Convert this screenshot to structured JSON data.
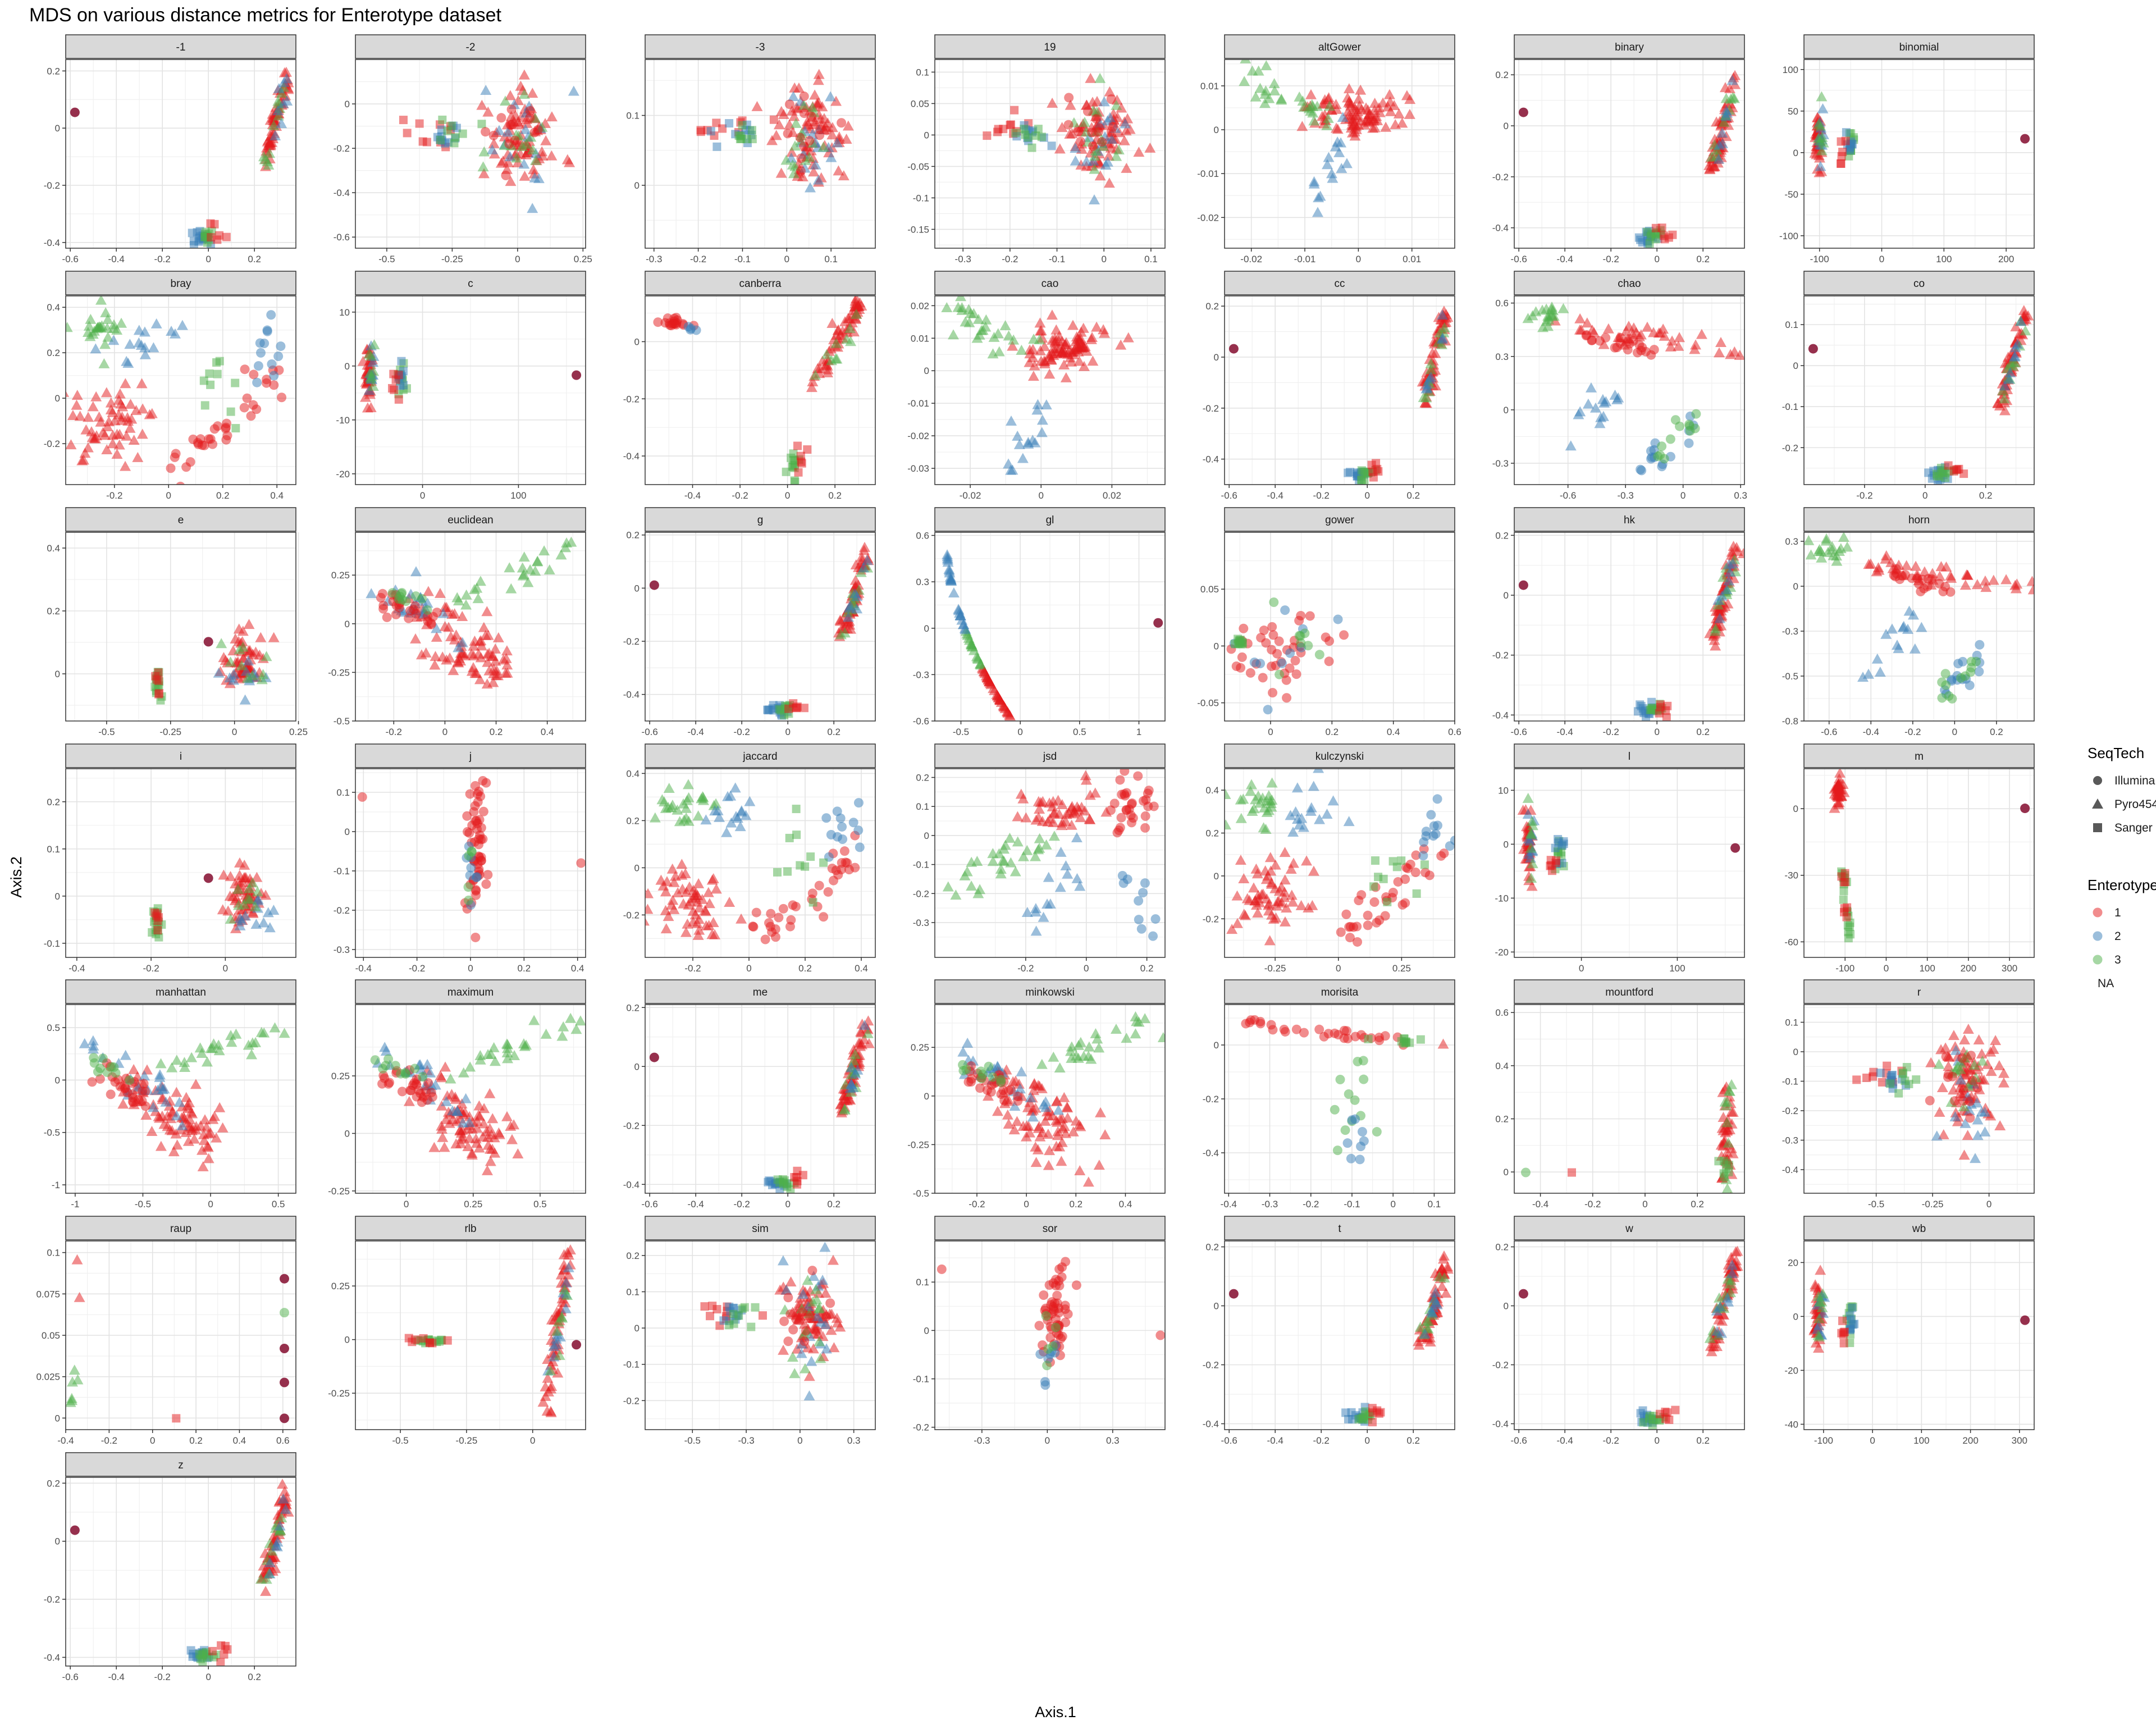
{
  "chart_data": {
    "type": "scatter",
    "title": "MDS on various distance metrics for Enterotype dataset",
    "xlabel": "Axis.1",
    "ylabel": "Axis.2",
    "colors": {
      "1": "#E41A1C",
      "2": "#377EB8",
      "3": "#4DAF4A",
      "NA": "#8B1A3A"
    },
    "legend": {
      "seqtech": {
        "title": "SeqTech",
        "items": [
          "Illumina",
          "Pyro454",
          "Sanger"
        ]
      },
      "enterotype": {
        "title": "Enterotype",
        "items": [
          "1",
          "2",
          "3",
          "NA"
        ]
      }
    },
    "facets": [
      {
        "label": "-1",
        "gen": "A",
        "xlim": [
          -0.62,
          0.38
        ],
        "ylim": [
          -0.42,
          0.24
        ],
        "xticks": [
          -0.6,
          -0.4,
          -0.2,
          0.0,
          0.2
        ],
        "yticks": [
          -0.4,
          -0.2,
          0.0,
          0.2
        ],
        "decimals": 1
      },
      {
        "label": "-2",
        "gen": "I",
        "xlim": [
          -0.62,
          0.26
        ],
        "ylim": [
          -0.65,
          0.2
        ],
        "xticks": [
          -0.5,
          -0.25,
          0.0,
          0.25
        ],
        "yticks": [
          -0.6,
          -0.4,
          -0.2,
          0.0
        ],
        "decimals": 2
      },
      {
        "label": "-3",
        "gen": "I",
        "xlim": [
          -0.32,
          0.2
        ],
        "ylim": [
          -0.09,
          0.18
        ],
        "xticks": [
          -0.3,
          -0.2,
          -0.1,
          0.0,
          0.1
        ],
        "yticks": [
          0.0,
          0.1
        ],
        "decimals": 1
      },
      {
        "label": "19",
        "gen": "I",
        "xlim": [
          -0.36,
          0.13
        ],
        "ylim": [
          -0.18,
          0.12
        ],
        "xticks": [
          -0.3,
          -0.2,
          -0.1,
          0.0,
          0.1
        ],
        "yticks": [
          -0.15,
          -0.1,
          -0.05,
          0.0,
          0.05,
          0.1
        ],
        "decimals": 2
      },
      {
        "label": "altGower",
        "gen": "H",
        "xlim": [
          -0.025,
          0.018
        ],
        "ylim": [
          -0.027,
          0.016
        ],
        "xticks": [
          -0.02,
          -0.01,
          0.0,
          0.01
        ],
        "yticks": [
          -0.02,
          -0.01,
          0.0,
          0.01
        ],
        "decimals": 2
      },
      {
        "label": "binary",
        "gen": "A",
        "xlim": [
          -0.62,
          0.38
        ],
        "ylim": [
          -0.48,
          0.26
        ],
        "xticks": [
          -0.6,
          -0.4,
          -0.2,
          0.0,
          0.2
        ],
        "yticks": [
          -0.4,
          -0.2,
          0.0,
          0.2
        ],
        "decimals": 1
      },
      {
        "label": "binomial",
        "gen": "C",
        "xlim": [
          -125,
          245
        ],
        "ylim": [
          -115,
          112
        ],
        "xticks": [
          -100,
          0,
          100,
          200
        ],
        "yticks": [
          -100,
          -50,
          0,
          50,
          100
        ],
        "decimals": 0
      },
      {
        "label": "bray",
        "gen": "J",
        "xlim": [
          -0.38,
          0.47
        ],
        "ylim": [
          -0.38,
          0.45
        ],
        "xticks": [
          -0.2,
          0.0,
          0.2,
          0.4
        ],
        "yticks": [
          -0.2,
          0.0,
          0.2,
          0.4
        ],
        "decimals": 1
      },
      {
        "label": "c",
        "gen": "C",
        "xlim": [
          -70,
          170
        ],
        "ylim": [
          -22,
          13
        ],
        "xticks": [
          0,
          100
        ],
        "yticks": [
          -20,
          -10,
          0,
          10
        ],
        "decimals": 0
      },
      {
        "label": "canberra",
        "gen": "K",
        "xlim": [
          -0.6,
          0.37
        ],
        "ylim": [
          -0.5,
          0.16
        ],
        "xticks": [
          -0.4,
          -0.2,
          0.0,
          0.2
        ],
        "yticks": [
          -0.4,
          -0.2,
          0.0
        ],
        "decimals": 1
      },
      {
        "label": "cao",
        "gen": "H",
        "xlim": [
          -0.03,
          0.035
        ],
        "ylim": [
          -0.035,
          0.023
        ],
        "xticks": [
          -0.02,
          0.0,
          0.02
        ],
        "yticks": [
          -0.03,
          -0.02,
          -0.01,
          0.0,
          0.01,
          0.02
        ],
        "decimals": 2
      },
      {
        "label": "cc",
        "gen": "A",
        "xlim": [
          -0.62,
          0.38
        ],
        "ylim": [
          -0.5,
          0.24
        ],
        "xticks": [
          -0.6,
          -0.4,
          -0.2,
          0.0,
          0.2
        ],
        "yticks": [
          -0.4,
          -0.2,
          0.0,
          0.2
        ],
        "decimals": 1
      },
      {
        "label": "chao",
        "gen": "N",
        "xlim": [
          -0.88,
          0.32
        ],
        "ylim": [
          -0.42,
          0.64
        ],
        "xticks": [
          -0.6,
          -0.3,
          0.0,
          0.3
        ],
        "yticks": [
          -0.3,
          0.0,
          0.3,
          0.6
        ],
        "decimals": 1
      },
      {
        "label": "co",
        "gen": "A",
        "xlim": [
          -0.4,
          0.36
        ],
        "ylim": [
          -0.29,
          0.17
        ],
        "xticks": [
          -0.2,
          0.0,
          0.2
        ],
        "yticks": [
          -0.2,
          -0.1,
          0.0,
          0.1
        ],
        "decimals": 1
      },
      {
        "label": "e",
        "gen": "E",
        "xlim": [
          -0.66,
          0.24
        ],
        "ylim": [
          -0.15,
          0.45
        ],
        "xticks": [
          -0.5,
          -0.25,
          0.0,
          0.25
        ],
        "yticks": [
          0.0,
          0.2,
          0.4
        ],
        "decimals": 2
      },
      {
        "label": "euclidean",
        "gen": "G",
        "xlim": [
          -0.35,
          0.55
        ],
        "ylim": [
          -0.5,
          0.47
        ],
        "xticks": [
          -0.2,
          0.0,
          0.2,
          0.4
        ],
        "yticks": [
          -0.5,
          -0.25,
          0.0,
          0.25
        ],
        "decimals": 2
      },
      {
        "label": "g",
        "gen": "A",
        "xlim": [
          -0.62,
          0.38
        ],
        "ylim": [
          -0.5,
          0.21
        ],
        "xticks": [
          -0.6,
          -0.4,
          -0.2,
          0.0,
          0.2
        ],
        "yticks": [
          -0.4,
          -0.2,
          0.0,
          0.2
        ],
        "decimals": 1
      },
      {
        "label": "gl",
        "gen": "L",
        "xlim": [
          -0.72,
          1.22
        ],
        "ylim": [
          -0.6,
          0.62
        ],
        "xticks": [
          -0.5,
          0.0,
          0.5,
          1.0
        ],
        "yticks": [
          -0.6,
          -0.3,
          0.0,
          0.3,
          0.6
        ],
        "decimals": 1
      },
      {
        "label": "gower",
        "gen": "M",
        "xlim": [
          -0.15,
          0.6
        ],
        "ylim": [
          -0.066,
          0.1
        ],
        "xticks": [
          0.0,
          0.2,
          0.4,
          0.6
        ],
        "yticks": [
          -0.05,
          0.0,
          0.05
        ],
        "decimals": 2
      },
      {
        "label": "hk",
        "gen": "A",
        "xlim": [
          -0.62,
          0.38
        ],
        "ylim": [
          -0.42,
          0.21
        ],
        "xticks": [
          -0.6,
          -0.4,
          -0.2,
          0.0,
          0.2
        ],
        "yticks": [
          -0.4,
          -0.2,
          0.0,
          0.2
        ],
        "decimals": 1
      },
      {
        "label": "horn",
        "gen": "N",
        "xlim": [
          -0.72,
          0.38
        ],
        "ylim": [
          -0.75,
          0.3
        ],
        "xticks": [
          -0.6,
          -0.4,
          -0.2,
          0.0,
          0.2
        ],
        "yticks": [
          -0.75,
          -0.5,
          -0.25,
          0.0,
          0.25
        ],
        "decimals": 1
      },
      {
        "label": "i",
        "gen": "E",
        "xlim": [
          -0.43,
          0.19
        ],
        "ylim": [
          -0.13,
          0.27
        ],
        "xticks": [
          -0.4,
          -0.2,
          0.0
        ],
        "yticks": [
          -0.1,
          0.0,
          0.1,
          0.2
        ],
        "decimals": 1
      },
      {
        "label": "j",
        "gen": "F",
        "xlim": [
          -0.43,
          0.43
        ],
        "ylim": [
          -0.32,
          0.16
        ],
        "xticks": [
          -0.4,
          -0.2,
          0.0,
          0.2,
          0.4
        ],
        "yticks": [
          -0.3,
          -0.2,
          -0.1,
          0.0,
          0.1
        ],
        "decimals": 1
      },
      {
        "label": "jaccard",
        "gen": "J",
        "xlim": [
          -0.37,
          0.45
        ],
        "ylim": [
          -0.38,
          0.42
        ],
        "xticks": [
          -0.2,
          0.0,
          0.2,
          0.4
        ],
        "yticks": [
          -0.2,
          0.0,
          0.2,
          0.4
        ],
        "decimals": 1
      },
      {
        "label": "jsd",
        "gen": "O",
        "xlim": [
          -0.5,
          0.26
        ],
        "ylim": [
          -0.42,
          0.23
        ],
        "xticks": [
          -0.2,
          0.0,
          0.2
        ],
        "yticks": [
          -0.3,
          -0.2,
          -0.1,
          0.0,
          0.1,
          0.2
        ],
        "decimals": 1
      },
      {
        "label": "kulczynski",
        "gen": "J",
        "xlim": [
          -0.45,
          0.46
        ],
        "ylim": [
          -0.38,
          0.5
        ],
        "xticks": [
          -0.25,
          0.0,
          0.25
        ],
        "yticks": [
          -0.2,
          0.0,
          0.2,
          0.4
        ],
        "decimals": 2
      },
      {
        "label": "l",
        "gen": "C",
        "xlim": [
          -70,
          170
        ],
        "ylim": [
          -21,
          14
        ],
        "xticks": [
          0,
          100
        ],
        "yticks": [
          -20,
          -10,
          0,
          10
        ],
        "decimals": 0
      },
      {
        "label": "m",
        "gen": "D",
        "xlim": [
          -200,
          360
        ],
        "ylim": [
          -67,
          18
        ],
        "xticks": [
          -100,
          0,
          100,
          200,
          300
        ],
        "yticks": [
          -60,
          -30,
          0
        ],
        "decimals": 0
      },
      {
        "label": "manhattan",
        "gen": "G",
        "xlim": [
          -1.07,
          0.63
        ],
        "ylim": [
          -1.08,
          0.72
        ],
        "xticks": [
          -1.0,
          -0.5,
          0.0,
          0.5
        ],
        "yticks": [
          -1.0,
          -0.5,
          0.0,
          0.5
        ],
        "decimals": 1
      },
      {
        "label": "maximum",
        "gen": "G",
        "xlim": [
          -0.19,
          0.67
        ],
        "ylim": [
          -0.26,
          0.56
        ],
        "xticks": [
          0.0,
          0.25,
          0.5
        ],
        "yticks": [
          -0.25,
          0.0,
          0.25
        ],
        "decimals": 2
      },
      {
        "label": "me",
        "gen": "A",
        "xlim": [
          -0.62,
          0.38
        ],
        "ylim": [
          -0.43,
          0.21
        ],
        "xticks": [
          -0.6,
          -0.4,
          -0.2,
          0.0,
          0.2
        ],
        "yticks": [
          -0.4,
          -0.2,
          0.0,
          0.2
        ],
        "decimals": 1
      },
      {
        "label": "minkowski",
        "gen": "G",
        "xlim": [
          -0.37,
          0.56
        ],
        "ylim": [
          -0.5,
          0.47
        ],
        "xticks": [
          -0.2,
          0.0,
          0.2,
          0.4
        ],
        "yticks": [
          -0.5,
          -0.25,
          0.0,
          0.25
        ],
        "decimals": 2
      },
      {
        "label": "morisita",
        "gen": "P",
        "xlim": [
          -0.41,
          0.15
        ],
        "ylim": [
          -0.55,
          0.15
        ],
        "xticks": [
          -0.4,
          -0.3,
          -0.2,
          -0.1,
          0.0,
          0.1
        ],
        "yticks": [
          -0.4,
          -0.2,
          0.0
        ],
        "decimals": 1
      },
      {
        "label": "mountford",
        "gen": "Q",
        "xlim": [
          -0.5,
          0.38
        ],
        "ylim": [
          -0.08,
          0.63
        ],
        "xticks": [
          -0.4,
          -0.2,
          0.0,
          0.2
        ],
        "yticks": [
          0.0,
          0.2,
          0.4,
          0.6
        ],
        "decimals": 1
      },
      {
        "label": "r",
        "gen": "I",
        "xlim": [
          -0.82,
          0.2
        ],
        "ylim": [
          -0.48,
          0.16
        ],
        "xticks": [
          -0.5,
          -0.25,
          0.0
        ],
        "yticks": [
          -0.4,
          -0.3,
          -0.2,
          -0.1,
          0.0,
          0.1
        ],
        "decimals": 2
      },
      {
        "label": "raup",
        "gen": "R",
        "xlim": [
          -0.4,
          0.66
        ],
        "ylim": [
          -0.007,
          0.107
        ],
        "xticks": [
          -0.4,
          -0.2,
          0.0,
          0.2,
          0.4,
          0.6
        ],
        "yticks": [
          0.0,
          0.025,
          0.05,
          0.075,
          0.1
        ],
        "decimals": 3
      },
      {
        "label": "rlb",
        "gen": "B",
        "xlim": [
          -0.67,
          0.2
        ],
        "ylim": [
          -0.42,
          0.46
        ],
        "xticks": [
          -0.5,
          -0.25,
          0.0
        ],
        "yticks": [
          -0.25,
          0.0,
          0.25
        ],
        "decimals": 2
      },
      {
        "label": "sim",
        "gen": "I",
        "xlim": [
          -0.72,
          0.35
        ],
        "ylim": [
          -0.28,
          0.24
        ],
        "xticks": [
          -0.5,
          -0.25,
          0.0,
          0.25
        ],
        "yticks": [
          -0.2,
          -0.1,
          0.0,
          0.1,
          0.2
        ],
        "decimals": 1
      },
      {
        "label": "sor",
        "gen": "F",
        "xlim": [
          -0.43,
          0.45
        ],
        "ylim": [
          -0.205,
          0.185
        ],
        "xticks": [
          -0.25,
          0.0,
          0.25
        ],
        "yticks": [
          -0.2,
          -0.1,
          0.0,
          0.1
        ],
        "decimals": 1
      },
      {
        "label": "t",
        "gen": "A",
        "xlim": [
          -0.62,
          0.38
        ],
        "ylim": [
          -0.42,
          0.22
        ],
        "xticks": [
          -0.6,
          -0.4,
          -0.2,
          0.0,
          0.2
        ],
        "yticks": [
          -0.4,
          -0.2,
          0.0,
          0.2
        ],
        "decimals": 1
      },
      {
        "label": "w",
        "gen": "A",
        "xlim": [
          -0.62,
          0.38
        ],
        "ylim": [
          -0.42,
          0.22
        ],
        "xticks": [
          -0.6,
          -0.4,
          -0.2,
          0.0,
          0.2
        ],
        "yticks": [
          -0.4,
          -0.2,
          0.0,
          0.2
        ],
        "decimals": 1
      },
      {
        "label": "wb",
        "gen": "C",
        "xlim": [
          -140,
          330
        ],
        "ylim": [
          -42,
          28
        ],
        "xticks": [
          -100,
          0,
          100,
          200,
          300
        ],
        "yticks": [
          -40,
          -20,
          0,
          20
        ],
        "decimals": 0
      },
      {
        "label": "z",
        "gen": "A",
        "xlim": [
          -0.62,
          0.38
        ],
        "ylim": [
          -0.43,
          0.22
        ],
        "xticks": [
          -0.6,
          -0.4,
          -0.2,
          0.0,
          0.2
        ],
        "yticks": [
          -0.4,
          -0.2,
          0.0,
          0.2
        ],
        "decimals": 1
      }
    ]
  }
}
